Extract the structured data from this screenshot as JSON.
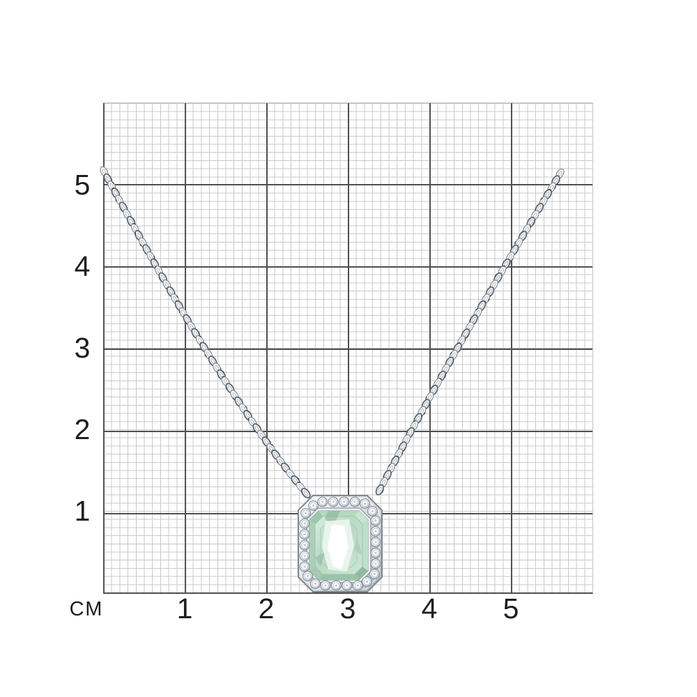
{
  "ruler": {
    "unit_label": "СМ",
    "x_labels": [
      "1",
      "2",
      "3",
      "4",
      "5"
    ],
    "y_labels": [
      "5",
      "4",
      "3",
      "2",
      "1"
    ]
  },
  "grid": {
    "minor_line_color": "#c9c9c9",
    "major_line_color": "#4f4f4f",
    "label_color": "#1e1e1e"
  },
  "product": {
    "description": "silver necklace with green emerald-cut stone pendant in diamond halo",
    "chain_link_light": "#f6f8fa",
    "chain_link_mid": "#eef1f4",
    "chain_stroke_light": "#8b949d",
    "chain_stroke_dark": "#5f6870",
    "chain_accent": "#454d55",
    "metal_light": "#fbfcfd",
    "metal_mid": "#d6dce1",
    "metal_dark": "#aeb6be",
    "metal_outline": "#7e8790",
    "diamond_color": "#fdfefe",
    "diamond_rim": "#818a93",
    "stone_light": "#dff0e4",
    "stone_mid": "#b9dac5",
    "stone_dark": "#93ba9f",
    "stone_outline": "#86ab93",
    "stone_flash": "#ffffff"
  }
}
